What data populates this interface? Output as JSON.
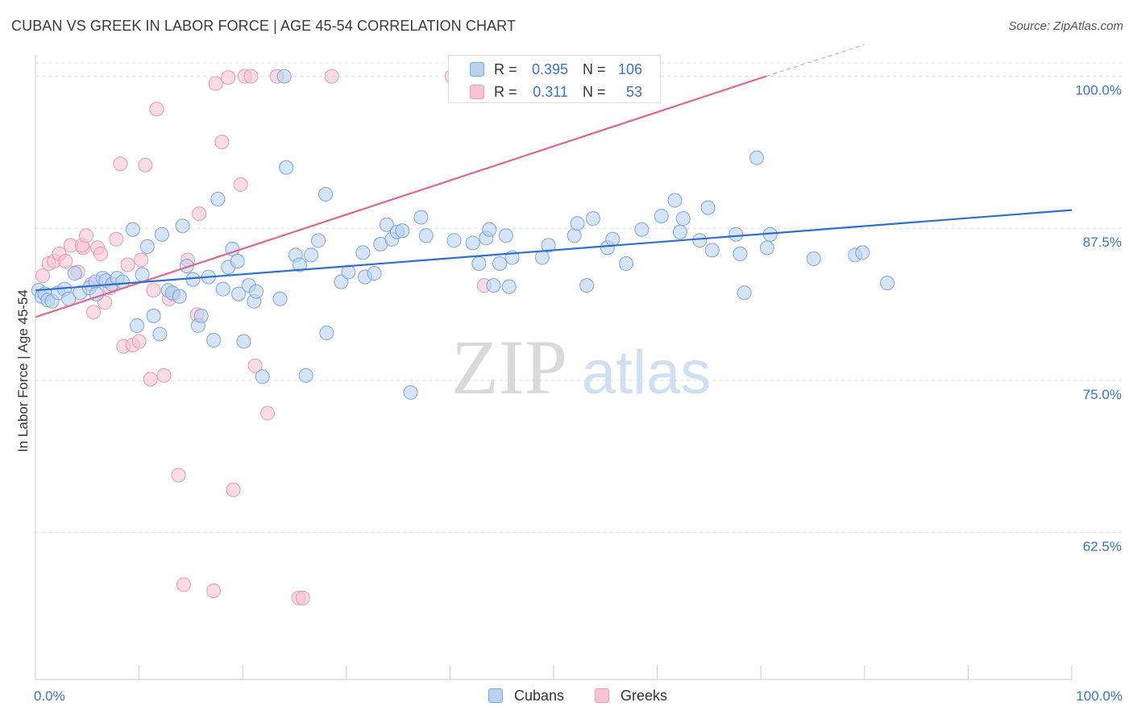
{
  "title": "CUBAN VS GREEK IN LABOR FORCE | AGE 45-54 CORRELATION CHART",
  "source": "Source: ZipAtlas.com",
  "watermark": {
    "zip": "ZIP",
    "atlas": "atlas"
  },
  "legend": {
    "r_label": "R =",
    "n_label": "N =",
    "rows": [
      {
        "series": "Cubans",
        "r": "0.395",
        "n": "106"
      },
      {
        "series": "Greeks",
        "r": "0.311",
        "n": "53"
      }
    ]
  },
  "colors": {
    "cubans_fill": "#b9d2f2",
    "cubans_stroke": "#7ea6dc",
    "cubans_line": "#2f6fcc",
    "greeks_fill": "#f8c3d3",
    "greeks_stroke": "#e79ab5",
    "greeks_line": "#e06592",
    "axis_label_blue": "#3a72c8",
    "grid": "#dedede"
  },
  "chart_data": {
    "type": "scatter",
    "title": "CUBAN VS GREEK IN LABOR FORCE | AGE 45-54 CORRELATION CHART",
    "xlabel": "",
    "ylabel": "In Labor Force | Age 45-54",
    "xlim": [
      0,
      100
    ],
    "ylim": [
      50.4,
      101.5
    ],
    "x_tick_labels": [
      "0.0%",
      "100.0%"
    ],
    "y_ticks": [
      62.5,
      75.0,
      87.5,
      100.0
    ],
    "y_tick_labels": [
      "62.5%",
      "75.0%",
      "87.5%",
      "100.0%"
    ],
    "grid": "horizontal dashed",
    "legend_position": "top-center",
    "series": [
      {
        "name": "Cubans",
        "r": 0.395,
        "n": 106,
        "trend": {
          "x": [
            0,
            100
          ],
          "y": [
            82.4,
            89.0
          ]
        },
        "points": [
          [
            0.3,
            82.4
          ],
          [
            0.6,
            81.9
          ],
          [
            0.9,
            82.1
          ],
          [
            1.2,
            81.6
          ],
          [
            1.6,
            81.5
          ],
          [
            2.2,
            82.2
          ],
          [
            2.8,
            82.5
          ],
          [
            3.2,
            81.7
          ],
          [
            3.8,
            83.8
          ],
          [
            4.3,
            82.2
          ],
          [
            5.2,
            82.6
          ],
          [
            5.8,
            83.1
          ],
          [
            5.9,
            82.1
          ],
          [
            6.5,
            83.4
          ],
          [
            6.8,
            83.2
          ],
          [
            7.4,
            82.9
          ],
          [
            7.9,
            83.4
          ],
          [
            8.4,
            83.1
          ],
          [
            9.4,
            87.4
          ],
          [
            9.8,
            79.5
          ],
          [
            10.3,
            83.7
          ],
          [
            10.8,
            86.0
          ],
          [
            11.4,
            80.3
          ],
          [
            12.0,
            78.8
          ],
          [
            12.2,
            87.0
          ],
          [
            12.8,
            82.4
          ],
          [
            13.2,
            82.2
          ],
          [
            13.9,
            81.9
          ],
          [
            14.2,
            87.7
          ],
          [
            14.6,
            84.4
          ],
          [
            15.2,
            83.3
          ],
          [
            15.7,
            79.5
          ],
          [
            16.0,
            80.3
          ],
          [
            16.7,
            83.5
          ],
          [
            17.2,
            78.3
          ],
          [
            17.6,
            89.9
          ],
          [
            18.1,
            82.5
          ],
          [
            18.6,
            84.3
          ],
          [
            19.0,
            85.8
          ],
          [
            19.6,
            82.1
          ],
          [
            20.1,
            78.2
          ],
          [
            20.6,
            82.8
          ],
          [
            21.1,
            81.5
          ],
          [
            21.3,
            82.3
          ],
          [
            21.9,
            75.3
          ],
          [
            23.6,
            81.7
          ],
          [
            24.2,
            92.5
          ],
          [
            25.1,
            85.3
          ],
          [
            25.5,
            84.5
          ],
          [
            26.1,
            75.4
          ],
          [
            26.6,
            85.3
          ],
          [
            27.3,
            86.5
          ],
          [
            28.0,
            90.3
          ],
          [
            28.1,
            78.9
          ],
          [
            29.5,
            83.1
          ],
          [
            30.2,
            83.9
          ],
          [
            31.6,
            85.5
          ],
          [
            31.8,
            83.5
          ],
          [
            32.7,
            83.8
          ],
          [
            33.3,
            86.2
          ],
          [
            33.9,
            87.8
          ],
          [
            34.4,
            86.6
          ],
          [
            34.9,
            87.2
          ],
          [
            35.4,
            87.3
          ],
          [
            36.2,
            74.0
          ],
          [
            37.2,
            88.4
          ],
          [
            37.7,
            86.9
          ],
          [
            40.4,
            86.5
          ],
          [
            42.2,
            86.3
          ],
          [
            42.8,
            84.6
          ],
          [
            43.5,
            86.7
          ],
          [
            43.8,
            87.4
          ],
          [
            44.2,
            82.8
          ],
          [
            44.8,
            84.6
          ],
          [
            45.4,
            86.9
          ],
          [
            45.7,
            82.7
          ],
          [
            46.0,
            85.1
          ],
          [
            48.9,
            85.1
          ],
          [
            49.5,
            86.1
          ],
          [
            52.0,
            86.9
          ],
          [
            52.3,
            87.9
          ],
          [
            53.2,
            82.8
          ],
          [
            53.8,
            88.3
          ],
          [
            55.2,
            85.9
          ],
          [
            55.7,
            86.6
          ],
          [
            57.0,
            84.6
          ],
          [
            58.5,
            87.4
          ],
          [
            60.4,
            88.5
          ],
          [
            61.7,
            89.8
          ],
          [
            62.2,
            87.2
          ],
          [
            62.5,
            88.3
          ],
          [
            64.1,
            86.5
          ],
          [
            64.9,
            89.2
          ],
          [
            65.3,
            85.7
          ],
          [
            67.6,
            87.0
          ],
          [
            68.0,
            85.4
          ],
          [
            68.4,
            82.2
          ],
          [
            69.6,
            93.3
          ],
          [
            70.6,
            85.9
          ],
          [
            70.9,
            87.0
          ],
          [
            75.1,
            85.0
          ],
          [
            79.1,
            85.3
          ],
          [
            79.8,
            85.5
          ],
          [
            82.2,
            83.0
          ],
          [
            24.0,
            100.0
          ],
          [
            19.5,
            84.8
          ]
        ]
      },
      {
        "name": "Greeks",
        "r": 0.311,
        "n": 53,
        "trend": {
          "x": [
            0,
            70.5
          ],
          "y": [
            80.2,
            100.0
          ],
          "dashed_to": {
            "x": 80,
            "y": 102.6
          }
        },
        "points": [
          [
            0.7,
            83.6
          ],
          [
            1.3,
            84.6
          ],
          [
            1.8,
            84.8
          ],
          [
            2.3,
            85.4
          ],
          [
            2.9,
            84.8
          ],
          [
            3.4,
            86.1
          ],
          [
            4.1,
            83.9
          ],
          [
            4.6,
            85.9
          ],
          [
            4.5,
            86.1
          ],
          [
            4.9,
            86.9
          ],
          [
            5.4,
            82.9
          ],
          [
            5.6,
            80.6
          ],
          [
            6.0,
            85.9
          ],
          [
            6.3,
            85.4
          ],
          [
            6.7,
            81.4
          ],
          [
            7.2,
            82.6
          ],
          [
            7.8,
            86.6
          ],
          [
            8.2,
            92.8
          ],
          [
            8.5,
            77.8
          ],
          [
            8.9,
            84.5
          ],
          [
            9.4,
            77.9
          ],
          [
            10.0,
            78.2
          ],
          [
            10.2,
            84.9
          ],
          [
            10.6,
            92.7
          ],
          [
            11.1,
            75.1
          ],
          [
            11.4,
            82.4
          ],
          [
            11.7,
            97.3
          ],
          [
            12.4,
            75.4
          ],
          [
            12.9,
            81.7
          ],
          [
            13.3,
            82.1
          ],
          [
            13.8,
            67.2
          ],
          [
            14.3,
            58.2
          ],
          [
            14.7,
            84.9
          ],
          [
            15.6,
            80.4
          ],
          [
            15.8,
            88.7
          ],
          [
            17.2,
            57.7
          ],
          [
            17.4,
            99.4
          ],
          [
            18.0,
            94.6
          ],
          [
            18.6,
            99.9
          ],
          [
            19.1,
            66.0
          ],
          [
            19.8,
            91.1
          ],
          [
            20.2,
            100.0
          ],
          [
            20.8,
            100.0
          ],
          [
            21.2,
            76.2
          ],
          [
            22.4,
            72.3
          ],
          [
            23.3,
            100.0
          ],
          [
            25.4,
            57.1
          ],
          [
            25.8,
            57.1
          ],
          [
            28.6,
            100.0
          ],
          [
            40.2,
            100.0
          ],
          [
            40.8,
            100.0
          ],
          [
            43.3,
            82.8
          ],
          [
            47.3,
            100.0
          ]
        ]
      }
    ]
  }
}
